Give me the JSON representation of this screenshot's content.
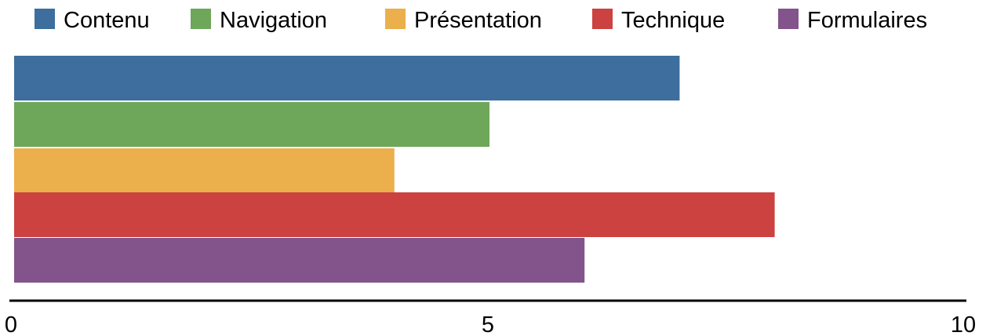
{
  "chart_data": {
    "type": "bar",
    "orientation": "horizontal",
    "title": "",
    "xlabel": "",
    "ylabel": "",
    "categories": [
      "Contenu",
      "Navigation",
      "Présentation",
      "Technique",
      "Formulaires"
    ],
    "values": [
      7,
      5,
      4,
      8,
      6
    ],
    "colors": [
      "#3d6e9e",
      "#6ea65a",
      "#ebaf4c",
      "#cb4240",
      "#82548b"
    ],
    "xlim": [
      0,
      10
    ],
    "xticks": [
      "0",
      "5",
      "10"
    ],
    "grid": false,
    "legend_position": "top",
    "legend": [
      {
        "label": "Contenu",
        "color": "#3d6e9e"
      },
      {
        "label": "Navigation",
        "color": "#6ea65a"
      },
      {
        "label": "Présentation",
        "color": "#ebaf4c"
      },
      {
        "label": "Technique",
        "color": "#cb4240"
      },
      {
        "label": "Formulaires",
        "color": "#82548b"
      }
    ]
  }
}
